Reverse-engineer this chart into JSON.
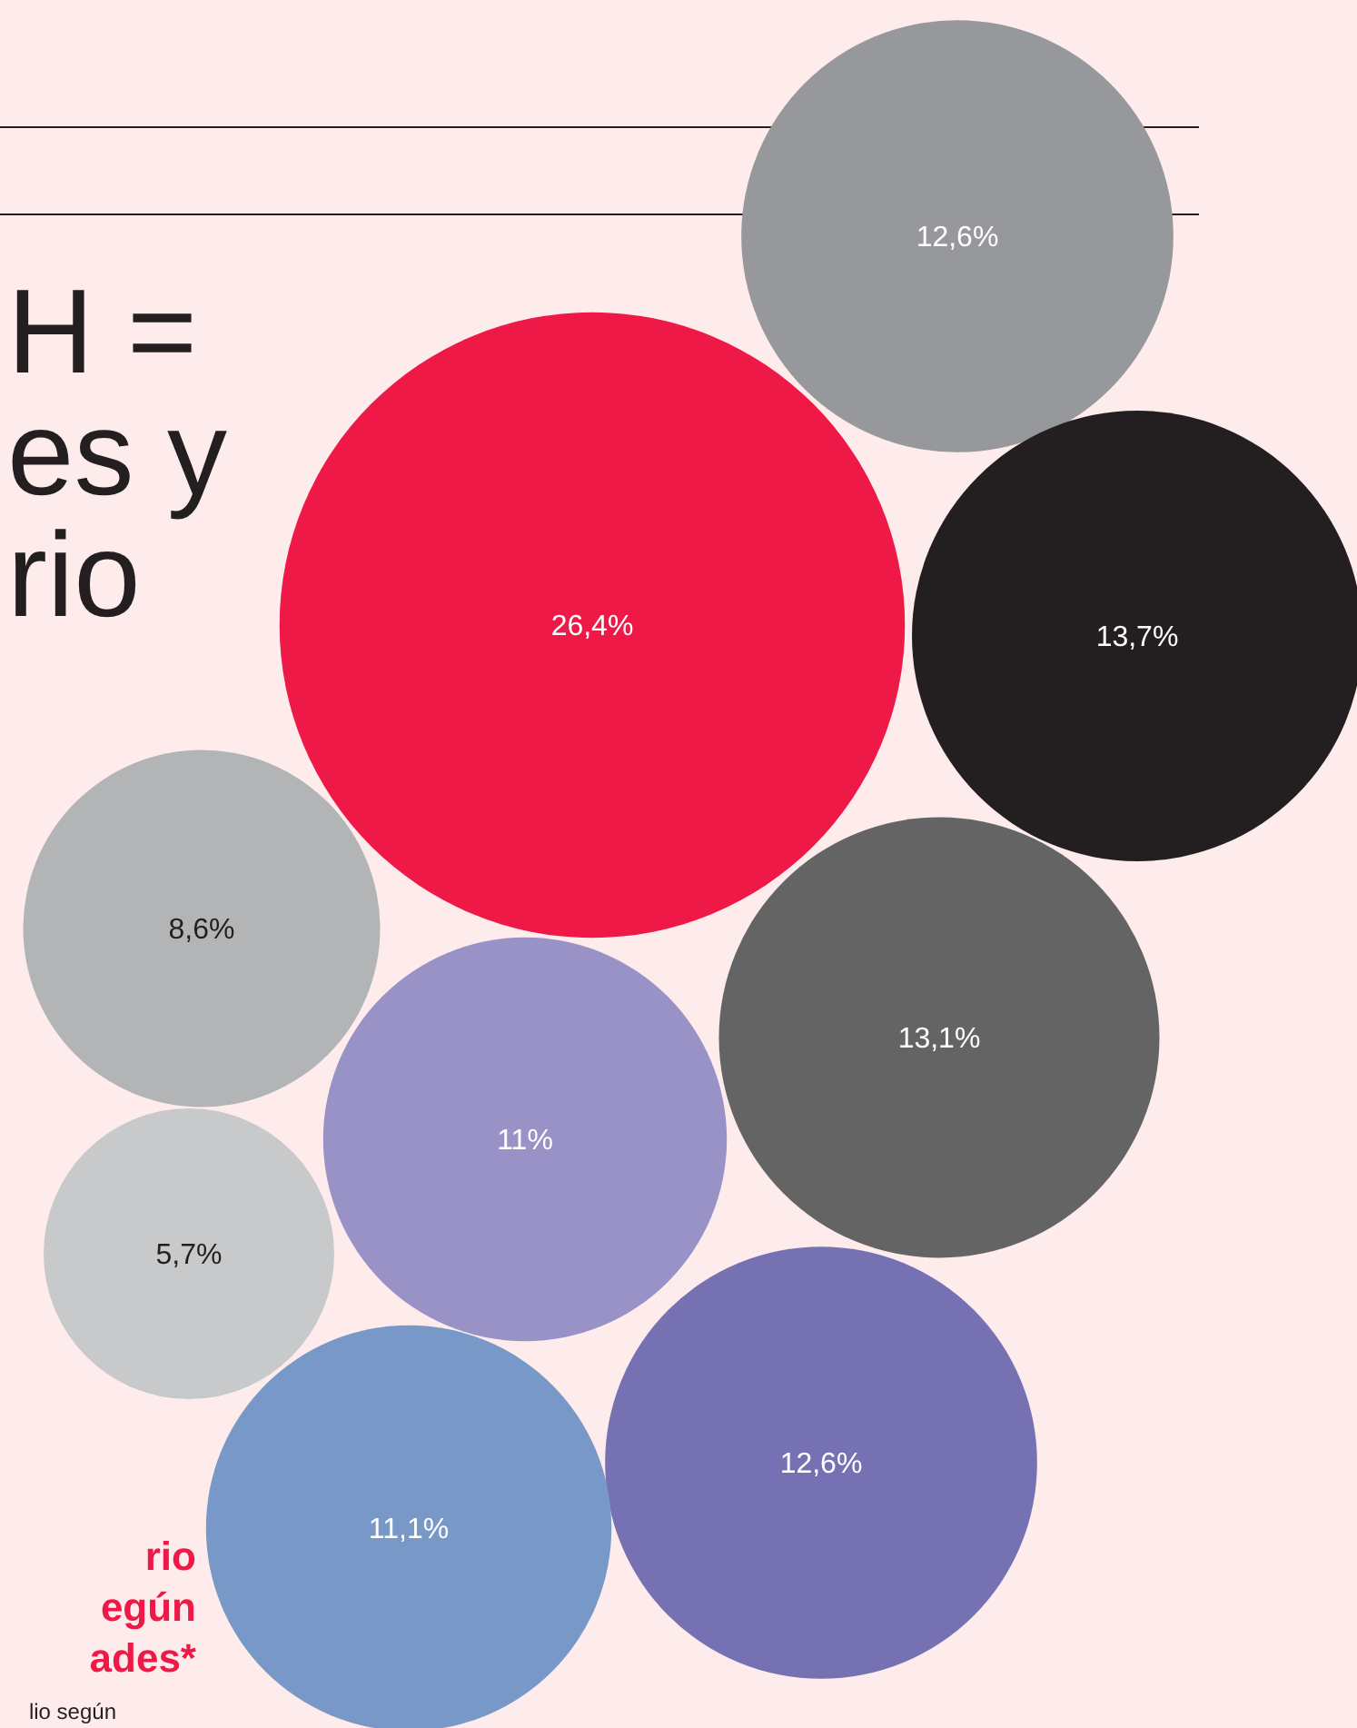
{
  "chart_data": {
    "type": "other",
    "title": "H =\nes y\nrio",
    "subtitle": "rio\negún\nades*",
    "annotations": [
      "lio según"
    ],
    "categories": [
      null,
      null,
      null,
      null,
      null,
      null,
      null,
      null,
      null
    ],
    "values": [
      12.6,
      26.4,
      13.7,
      8.6,
      13.1,
      11,
      5.7,
      12.6,
      11.1
    ],
    "value_labels": [
      "12,6%",
      "26,4%",
      "13,7%",
      "8,6%",
      "13,1%",
      "11%",
      "5,7%",
      "12,6%",
      "11,1%"
    ],
    "colors": [
      "#97989b",
      "#ee1946",
      "#231f20",
      "#b3b4b6",
      "#646465",
      "#9992c7",
      "#c8c9ca",
      "#7671b3",
      "#7898c8"
    ]
  }
}
